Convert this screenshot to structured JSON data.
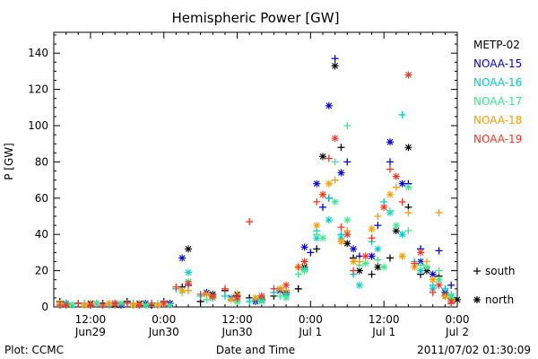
{
  "chart_data": {
    "type": "scatter",
    "title": "Hemispheric Power [GW]",
    "ylabel": "P [GW]",
    "xlabel": "Date and Time",
    "ylim": [
      0,
      150
    ],
    "yticks": [
      0,
      20,
      40,
      60,
      80,
      100,
      120,
      140
    ],
    "x_unit": "hours since 2011-06-28 18:00",
    "xlim": [
      0,
      66
    ],
    "xticks": [
      {
        "pos": 6,
        "time": "12:00",
        "date": "Jun29"
      },
      {
        "pos": 18,
        "time": "0:00",
        "date": "Jun30"
      },
      {
        "pos": 30,
        "time": "12:00",
        "date": "Jun30"
      },
      {
        "pos": 42,
        "time": "0:00",
        "date": "Jul 1"
      },
      {
        "pos": 54,
        "time": "12:00",
        "date": "Jul 1"
      },
      {
        "pos": 66,
        "time": "0:00",
        "date": "Jul 2"
      }
    ],
    "markers_legend": [
      {
        "symbol": "+",
        "label": "south"
      },
      {
        "symbol": "*",
        "label": "north"
      }
    ],
    "series": [
      {
        "name": "METP-02",
        "color": "#000000",
        "south": [
          [
            1,
            3
          ],
          [
            4,
            2
          ],
          [
            8,
            2
          ],
          [
            12,
            3
          ],
          [
            16,
            1
          ],
          [
            21,
            11
          ],
          [
            24,
            3
          ],
          [
            28,
            9
          ],
          [
            32,
            5
          ],
          [
            36,
            6
          ],
          [
            40,
            10
          ],
          [
            43,
            32
          ],
          [
            45,
            60
          ],
          [
            47,
            88
          ],
          [
            49,
            27
          ],
          [
            52,
            18
          ],
          [
            55,
            27
          ],
          [
            58,
            55
          ],
          [
            60,
            18
          ],
          [
            63,
            17
          ],
          [
            65,
            5
          ]
        ],
        "north": [
          [
            2,
            2
          ],
          [
            6,
            2
          ],
          [
            10,
            1
          ],
          [
            14,
            2
          ],
          [
            19,
            2
          ],
          [
            22,
            32
          ],
          [
            26,
            7
          ],
          [
            30,
            7
          ],
          [
            34,
            4
          ],
          [
            38,
            8
          ],
          [
            41,
            22
          ],
          [
            44,
            83
          ],
          [
            46,
            133
          ],
          [
            48,
            35
          ],
          [
            50,
            20
          ],
          [
            53,
            22
          ],
          [
            56,
            42
          ],
          [
            58,
            88
          ],
          [
            61,
            20
          ],
          [
            64,
            6
          ],
          [
            66,
            4
          ]
        ]
      },
      {
        "name": "NOAA-15",
        "color": "#0000dd",
        "south": [
          [
            2,
            2
          ],
          [
            6,
            1
          ],
          [
            10,
            2
          ],
          [
            14,
            1
          ],
          [
            18,
            3
          ],
          [
            22,
            12
          ],
          [
            26,
            5
          ],
          [
            30,
            6
          ],
          [
            34,
            4
          ],
          [
            38,
            7
          ],
          [
            42,
            30
          ],
          [
            44,
            55
          ],
          [
            46,
            137
          ],
          [
            48,
            80
          ],
          [
            50,
            28
          ],
          [
            53,
            45
          ],
          [
            55,
            80
          ],
          [
            58,
            68
          ],
          [
            60,
            32
          ],
          [
            63,
            31
          ],
          [
            65,
            12
          ]
        ],
        "north": [
          [
            3,
            1
          ],
          [
            7,
            2
          ],
          [
            11,
            1
          ],
          [
            15,
            2
          ],
          [
            19,
            2
          ],
          [
            21,
            27
          ],
          [
            25,
            8
          ],
          [
            29,
            5
          ],
          [
            33,
            3
          ],
          [
            37,
            9
          ],
          [
            41,
            33
          ],
          [
            43,
            68
          ],
          [
            45,
            111
          ],
          [
            47,
            74
          ],
          [
            49,
            32
          ],
          [
            52,
            28
          ],
          [
            55,
            91
          ],
          [
            57,
            68
          ],
          [
            60,
            25
          ],
          [
            62,
            18
          ],
          [
            64,
            8
          ]
        ]
      },
      {
        "name": "NOAA-16",
        "color": "#00cccc",
        "south": [
          [
            1,
            1
          ],
          [
            5,
            2
          ],
          [
            9,
            1
          ],
          [
            13,
            2
          ],
          [
            17,
            1
          ],
          [
            20,
            10
          ],
          [
            24,
            6
          ],
          [
            28,
            6
          ],
          [
            32,
            3
          ],
          [
            36,
            8
          ],
          [
            40,
            22
          ],
          [
            43,
            42
          ],
          [
            45,
            60
          ],
          [
            47,
            40
          ],
          [
            49,
            18
          ],
          [
            52,
            36
          ],
          [
            54,
            58
          ],
          [
            57,
            106
          ],
          [
            59,
            25
          ],
          [
            62,
            12
          ],
          [
            64,
            10
          ]
        ],
        "north": [
          [
            2,
            2
          ],
          [
            6,
            1
          ],
          [
            10,
            2
          ],
          [
            14,
            1
          ],
          [
            18,
            2
          ],
          [
            22,
            19
          ],
          [
            26,
            5
          ],
          [
            30,
            4
          ],
          [
            34,
            5
          ],
          [
            38,
            7
          ],
          [
            41,
            21
          ],
          [
            43,
            38
          ],
          [
            45,
            48
          ],
          [
            47,
            38
          ],
          [
            50,
            12
          ],
          [
            53,
            32
          ],
          [
            55,
            52
          ],
          [
            57,
            40
          ],
          [
            60,
            20
          ],
          [
            62,
            10
          ],
          [
            65,
            6
          ]
        ]
      },
      {
        "name": "NOAA-17",
        "color": "#33ee88",
        "south": [
          [
            1,
            2
          ],
          [
            5,
            1
          ],
          [
            9,
            2
          ],
          [
            13,
            1
          ],
          [
            17,
            2
          ],
          [
            21,
            8
          ],
          [
            25,
            4
          ],
          [
            29,
            5
          ],
          [
            33,
            4
          ],
          [
            37,
            6
          ],
          [
            40,
            18
          ],
          [
            43,
            40
          ],
          [
            46,
            80
          ],
          [
            48,
            100
          ],
          [
            50,
            23
          ],
          [
            53,
            26
          ],
          [
            55,
            53
          ],
          [
            58,
            42
          ],
          [
            60,
            23
          ],
          [
            63,
            20
          ],
          [
            65,
            7
          ]
        ],
        "north": [
          [
            3,
            1
          ],
          [
            7,
            2
          ],
          [
            11,
            2
          ],
          [
            15,
            1
          ],
          [
            19,
            1
          ],
          [
            22,
            14
          ],
          [
            26,
            6
          ],
          [
            30,
            3
          ],
          [
            34,
            3
          ],
          [
            38,
            5
          ],
          [
            41,
            20
          ],
          [
            44,
            38
          ],
          [
            46,
            58
          ],
          [
            48,
            48
          ],
          [
            51,
            24
          ],
          [
            54,
            22
          ],
          [
            56,
            45
          ],
          [
            58,
            66
          ],
          [
            61,
            22
          ],
          [
            63,
            15
          ],
          [
            65,
            5
          ]
        ]
      },
      {
        "name": "NOAA-18",
        "color": "#ff9900",
        "south": [
          [
            2,
            1
          ],
          [
            6,
            2
          ],
          [
            10,
            1
          ],
          [
            14,
            2
          ],
          [
            18,
            2
          ],
          [
            22,
            9
          ],
          [
            26,
            5
          ],
          [
            30,
            7
          ],
          [
            34,
            6
          ],
          [
            38,
            9
          ],
          [
            41,
            25
          ],
          [
            44,
            62
          ],
          [
            46,
            70
          ],
          [
            48,
            42
          ],
          [
            50,
            25
          ],
          [
            53,
            50
          ],
          [
            56,
            66
          ],
          [
            58,
            52
          ],
          [
            61,
            25
          ],
          [
            63,
            52
          ],
          [
            65,
            4
          ]
        ],
        "north": [
          [
            1,
            2
          ],
          [
            5,
            1
          ],
          [
            9,
            2
          ],
          [
            13,
            1
          ],
          [
            17,
            1
          ],
          [
            21,
            9
          ],
          [
            25,
            7
          ],
          [
            29,
            4
          ],
          [
            33,
            5
          ],
          [
            37,
            10
          ],
          [
            40,
            22
          ],
          [
            43,
            45
          ],
          [
            45,
            68
          ],
          [
            47,
            36
          ],
          [
            49,
            25
          ],
          [
            52,
            43
          ],
          [
            55,
            62
          ],
          [
            57,
            28
          ],
          [
            59,
            22
          ],
          [
            62,
            15
          ],
          [
            64,
            6
          ]
        ]
      },
      {
        "name": "NOAA-19",
        "color": "#ff3322",
        "south": [
          [
            1,
            1
          ],
          [
            4,
            2
          ],
          [
            8,
            1
          ],
          [
            12,
            2
          ],
          [
            16,
            2
          ],
          [
            20,
            11
          ],
          [
            24,
            7
          ],
          [
            28,
            10
          ],
          [
            32,
            47
          ],
          [
            36,
            10
          ],
          [
            40,
            22
          ],
          [
            43,
            58
          ],
          [
            45,
            82
          ],
          [
            47,
            44
          ],
          [
            49,
            20
          ],
          [
            52,
            38
          ],
          [
            55,
            76
          ],
          [
            57,
            58
          ],
          [
            59,
            24
          ],
          [
            62,
            8
          ],
          [
            65,
            2
          ]
        ],
        "north": [
          [
            2,
            1
          ],
          [
            6,
            1
          ],
          [
            10,
            2
          ],
          [
            14,
            1
          ],
          [
            18,
            2
          ],
          [
            22,
            13
          ],
          [
            26,
            6
          ],
          [
            30,
            5
          ],
          [
            34,
            6
          ],
          [
            38,
            12
          ],
          [
            41,
            25
          ],
          [
            44,
            62
          ],
          [
            46,
            93
          ],
          [
            48,
            40
          ],
          [
            51,
            28
          ],
          [
            54,
            55
          ],
          [
            56,
            72
          ],
          [
            58,
            128
          ],
          [
            60,
            30
          ],
          [
            63,
            12
          ],
          [
            65,
            3
          ]
        ]
      }
    ]
  },
  "footer": {
    "left": "Plot: CCMC",
    "right": "2011/07/02 01:30:09"
  }
}
